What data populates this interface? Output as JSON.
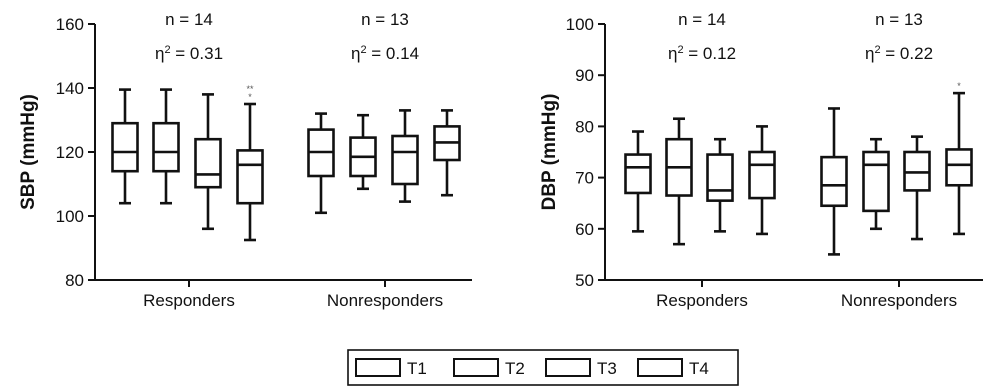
{
  "chart_data": [
    {
      "type": "box",
      "ylabel": "SBP (mmHg)",
      "ylim": [
        80,
        160
      ],
      "yticks": [
        80,
        100,
        120,
        140,
        160
      ],
      "categories": [
        "Responders",
        "Nonresponders"
      ],
      "series_order": [
        "T1",
        "T2",
        "T3",
        "T4"
      ],
      "groups": [
        {
          "category": "Responders",
          "n_label": "n = 14",
          "eta_label": "0.31",
          "boxes": [
            {
              "series": "T1",
              "min": 104,
              "q1": 114,
              "median": 120,
              "q3": 129,
              "max": 139.5,
              "sig": ""
            },
            {
              "series": "T2",
              "min": 104,
              "q1": 114,
              "median": 120,
              "q3": 129,
              "max": 139.5,
              "sig": ""
            },
            {
              "series": "T3",
              "min": 96,
              "q1": 109,
              "median": 113,
              "q3": 124,
              "max": 138,
              "sig": ""
            },
            {
              "series": "T4",
              "min": 92.5,
              "q1": 104,
              "median": 116,
              "q3": 120.5,
              "max": 135,
              "sig": "**\n*"
            }
          ]
        },
        {
          "category": "Nonresponders",
          "n_label": "n = 13",
          "eta_label": "0.14",
          "boxes": [
            {
              "series": "T1",
              "min": 101,
              "q1": 112.5,
              "median": 120,
              "q3": 127,
              "max": 132,
              "sig": ""
            },
            {
              "series": "T2",
              "min": 108.5,
              "q1": 112.5,
              "median": 118.5,
              "q3": 124.5,
              "max": 131.5,
              "sig": ""
            },
            {
              "series": "T3",
              "min": 104.5,
              "q1": 110,
              "median": 120,
              "q3": 125,
              "max": 133,
              "sig": ""
            },
            {
              "series": "T4",
              "min": 106.5,
              "q1": 117.5,
              "median": 123,
              "q3": 128,
              "max": 133,
              "sig": ""
            }
          ]
        }
      ]
    },
    {
      "type": "box",
      "ylabel": "DBP (mmHg)",
      "ylim": [
        50,
        100
      ],
      "yticks": [
        50,
        60,
        70,
        80,
        90,
        100
      ],
      "categories": [
        "Responders",
        "Nonresponders"
      ],
      "series_order": [
        "T1",
        "T2",
        "T3",
        "T4"
      ],
      "groups": [
        {
          "category": "Responders",
          "n_label": "n = 14",
          "eta_label": "0.12",
          "boxes": [
            {
              "series": "T1",
              "min": 59.5,
              "q1": 67,
              "median": 72,
              "q3": 74.5,
              "max": 79,
              "sig": ""
            },
            {
              "series": "T2",
              "min": 57,
              "q1": 66.5,
              "median": 72,
              "q3": 77.5,
              "max": 81.5,
              "sig": ""
            },
            {
              "series": "T3",
              "min": 59.5,
              "q1": 65.5,
              "median": 67.5,
              "q3": 74.5,
              "max": 77.5,
              "sig": ""
            },
            {
              "series": "T4",
              "min": 59,
              "q1": 66,
              "median": 72.5,
              "q3": 75,
              "max": 80,
              "sig": ""
            }
          ]
        },
        {
          "category": "Nonresponders",
          "n_label": "n = 13",
          "eta_label": "0.22",
          "boxes": [
            {
              "series": "T1",
              "min": 55,
              "q1": 64.5,
              "median": 68.5,
              "q3": 74,
              "max": 83.5,
              "sig": ""
            },
            {
              "series": "T2",
              "min": 60,
              "q1": 63.5,
              "median": 72.5,
              "q3": 75,
              "max": 77.5,
              "sig": ""
            },
            {
              "series": "T3",
              "min": 58,
              "q1": 67.5,
              "median": 71,
              "q3": 75,
              "max": 78,
              "sig": ""
            },
            {
              "series": "T4",
              "min": 59,
              "q1": 68.5,
              "median": 72.5,
              "q3": 75.5,
              "max": 86.5,
              "sig": "*"
            }
          ]
        }
      ]
    }
  ],
  "legend": {
    "items": [
      "T1",
      "T2",
      "T3",
      "T4"
    ],
    "placement": "bottom-center"
  },
  "annotation": {
    "eta_symbol": "η",
    "eta_sup": "2",
    "eta_eq": " = "
  }
}
